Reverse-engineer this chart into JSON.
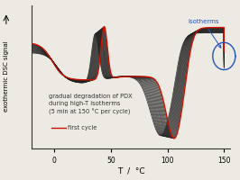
{
  "xlabel": "T  /  °C",
  "ylabel": "exothermic DSC signal",
  "xlim": [
    -20,
    155
  ],
  "ylim": [
    -1.05,
    1.05
  ],
  "bg_color": "#ede9e3",
  "first_cycle_color": "#cc1100",
  "bundle_color": "#222222",
  "annotation_text": "gradual degradation of PDX\nduring high-T isotherms\n(5 min at 150 °C per cycle)",
  "legend_label": "first cycle",
  "isotherms_label": "isotherms",
  "isotherms_color": "#2255bb",
  "xticks": [
    0,
    50,
    100,
    150
  ],
  "n_cycles": 18
}
